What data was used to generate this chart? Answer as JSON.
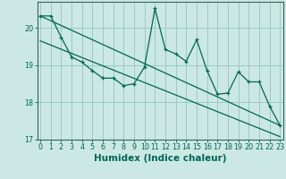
{
  "xlabel": "Humidex (Indice chaleur)",
  "bg_color": "#cce8e4",
  "grid_color": "#99ccc4",
  "line_color": "#006655",
  "spine_color": "#336655",
  "x_data": [
    0,
    1,
    2,
    3,
    4,
    5,
    6,
    7,
    8,
    9,
    10,
    11,
    12,
    13,
    14,
    15,
    16,
    17,
    18,
    19,
    20,
    21,
    22,
    23
  ],
  "y_main": [
    20.32,
    20.32,
    19.75,
    19.22,
    19.08,
    18.85,
    18.65,
    18.65,
    18.45,
    18.5,
    18.95,
    20.52,
    19.42,
    19.3,
    19.1,
    19.68,
    18.85,
    18.22,
    18.25,
    18.82,
    18.55,
    18.55,
    17.9,
    17.38
  ],
  "trend1_x": [
    0,
    23
  ],
  "trend1_y": [
    20.32,
    17.38
  ],
  "trend2_x": [
    0,
    23
  ],
  "trend2_y": [
    19.65,
    17.08
  ],
  "xlim": [
    -0.3,
    23.3
  ],
  "ylim": [
    17.0,
    20.7
  ],
  "yticks": [
    17,
    18,
    19,
    20
  ],
  "xticks": [
    0,
    1,
    2,
    3,
    4,
    5,
    6,
    7,
    8,
    9,
    10,
    11,
    12,
    13,
    14,
    15,
    16,
    17,
    18,
    19,
    20,
    21,
    22,
    23
  ],
  "tick_fontsize": 5.8,
  "xlabel_fontsize": 7.5
}
